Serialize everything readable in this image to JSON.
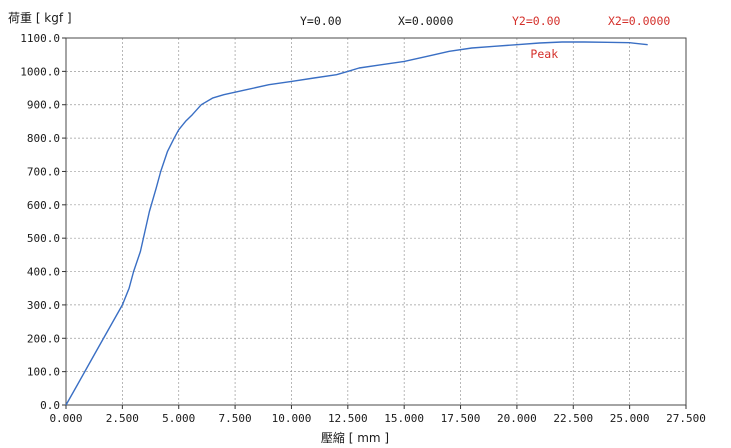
{
  "header": {
    "readouts": [
      {
        "text": "Y=0.00",
        "color": "#1a1a1a"
      },
      {
        "text": "X=0.0000",
        "color": "#1a1a1a"
      },
      {
        "text": "Y2=0.00",
        "color": "#d4302b"
      },
      {
        "text": "X2=0.0000",
        "color": "#d4302b"
      }
    ]
  },
  "chart_data": {
    "type": "line",
    "ylabel": "荷重 [ kgf ]",
    "xlabel": "壓縮 [ mm ]",
    "xlim": [
      0,
      27.5
    ],
    "ylim": [
      0,
      1100
    ],
    "x_ticks": [
      "0.000",
      "2.500",
      "5.000",
      "7.500",
      "10.000",
      "12.500",
      "15.000",
      "17.500",
      "20.000",
      "22.500",
      "25.000",
      "27.500"
    ],
    "y_ticks": [
      "0.0",
      "100.0",
      "200.0",
      "300.0",
      "400.0",
      "500.0",
      "600.0",
      "700.0",
      "800.0",
      "900.0",
      "1000.0",
      "1100.0"
    ],
    "grid": true,
    "line_color": "#3a6fc4",
    "annotations": [
      {
        "text": "Peak",
        "x": 20.6,
        "y": 1040,
        "color": "#d4302b"
      }
    ],
    "series": [
      {
        "x": [
          0,
          0.5,
          1.0,
          1.5,
          2.0,
          2.5,
          2.8,
          3.0,
          3.3,
          3.5,
          3.7,
          4.0,
          4.2,
          4.5,
          4.8,
          5.0,
          5.3,
          5.6,
          6.0,
          6.5,
          7.0,
          8.0,
          9.0,
          10.0,
          11.0,
          12.0,
          12.5,
          13.0,
          14.0,
          15.0,
          16.0,
          17.0,
          18.0,
          19.0,
          20.0,
          21.0,
          22.0,
          23.0,
          24.0,
          25.0,
          25.8
        ],
        "y": [
          0,
          60,
          120,
          180,
          240,
          300,
          350,
          400,
          460,
          520,
          580,
          650,
          700,
          760,
          800,
          825,
          850,
          870,
          900,
          920,
          930,
          945,
          960,
          970,
          980,
          990,
          1000,
          1010,
          1020,
          1030,
          1045,
          1060,
          1070,
          1075,
          1080,
          1085,
          1088,
          1088,
          1087,
          1086,
          1080
        ]
      }
    ]
  }
}
